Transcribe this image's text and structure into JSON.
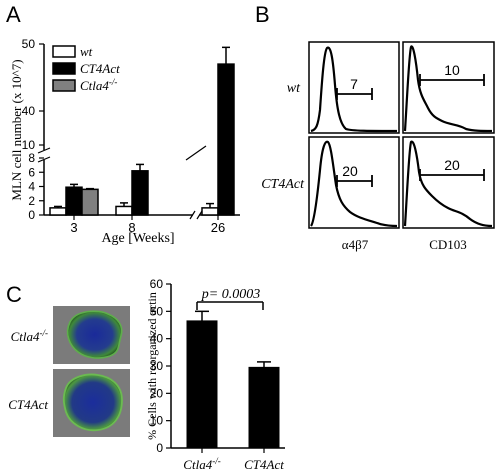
{
  "panels": {
    "a": "A",
    "b": "B",
    "c": "C"
  },
  "chart_data": [
    {
      "type": "bar",
      "panel": "A",
      "ylabel": "MLN cell number (x 10^7)",
      "xlabel": "Age [Weeks]",
      "categories": [
        "3",
        "8",
        "26"
      ],
      "y_ticks_lower": [
        "0",
        "2",
        "4",
        "6",
        "8"
      ],
      "y_ticks_upper": [
        "10",
        "40",
        "50"
      ],
      "axis_break": "y between 8 and 10; x between 8 and 26",
      "legend_position": "top-left",
      "series": [
        {
          "name": "wt",
          "color": "#ffffff",
          "values": [
            1.0,
            1.2,
            1.0
          ],
          "errors": [
            0.2,
            0.5,
            0.6
          ]
        },
        {
          "name": "CT4Act",
          "color": "#000000",
          "values": [
            3.9,
            6.2,
            47
          ],
          "errors": [
            0.4,
            0.9,
            2.5
          ]
        },
        {
          "name": "Ctla4-/-",
          "name_base": "Ctla4",
          "name_sup": "-/-",
          "color": "#808080",
          "values": [
            3.6,
            null,
            null
          ],
          "errors": [
            0.1,
            null,
            null
          ]
        }
      ]
    },
    {
      "type": "histogram-grid",
      "panel": "B",
      "rows": [
        "wt",
        "CT4Act"
      ],
      "columns": [
        "α4β7",
        "CD103"
      ],
      "gate_values": [
        [
          "7",
          "10"
        ],
        [
          "20",
          "20"
        ]
      ]
    },
    {
      "type": "bar",
      "panel": "C",
      "ylabel": "% Cells with reorganized actin",
      "categories": [
        "Ctla4-/-",
        "CT4Act"
      ],
      "category_labels": [
        {
          "base": "Ctla4",
          "sup": "-/-"
        },
        {
          "base": "CT4Act",
          "sup": ""
        }
      ],
      "values": [
        46.5,
        29.5
      ],
      "errors": [
        3.5,
        2.0
      ],
      "ylim": [
        0,
        60
      ],
      "y_ticks": [
        "0",
        "10",
        "20",
        "30",
        "40",
        "50",
        "60"
      ],
      "annotation": "p= 0.0003",
      "image_labels": [
        {
          "base": "Ctla4",
          "sup": "-/-"
        },
        {
          "base": "CT4Act",
          "sup": ""
        }
      ]
    }
  ]
}
